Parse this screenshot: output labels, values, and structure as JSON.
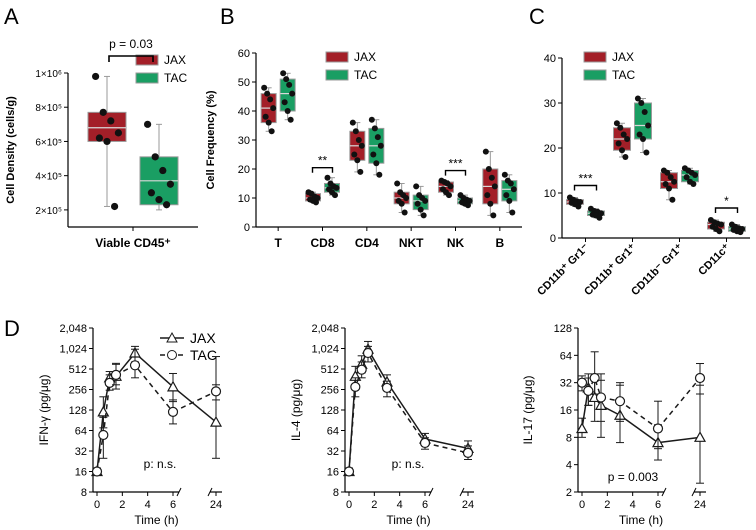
{
  "colors": {
    "jax": "#a31f28",
    "tac": "#1a9e63",
    "line": "#1a1a1a",
    "dot": "#111111"
  },
  "chart_data": [
    {
      "panel": "A",
      "type": "box",
      "ylabel": "Cell Density (cells/g)",
      "categories": [
        "Viable CD45⁺"
      ],
      "ylim": [
        100000,
        1000000
      ],
      "yticks": [
        200000,
        400000,
        600000,
        800000,
        1000000
      ],
      "ytick_labels": [
        "2×10⁵",
        "4×10⁵",
        "6×10⁵",
        "8×10⁵",
        "1×10⁶"
      ],
      "legend": [
        "JAX",
        "TAC"
      ],
      "annotation": "p = 0.03",
      "series": [
        {
          "name": "JAX",
          "box": {
            "min": 220000,
            "q1": 600000,
            "median": 680000,
            "q3": 770000,
            "max": 980000
          },
          "points": [
            980000,
            770000,
            720000,
            650000,
            620000,
            600000,
            220000
          ]
        },
        {
          "name": "TAC",
          "box": {
            "min": 200000,
            "q1": 230000,
            "median": 370000,
            "q3": 510000,
            "max": 700000
          },
          "points": [
            700000,
            510000,
            430000,
            350000,
            300000,
            260000,
            230000
          ]
        }
      ]
    },
    {
      "panel": "B",
      "type": "box",
      "ylabel": "Cell Frequency (%)",
      "categories": [
        "T",
        "CD8",
        "CD4",
        "NKT",
        "NK",
        "B"
      ],
      "ylim": [
        0,
        60
      ],
      "yticks": [
        0,
        10,
        20,
        30,
        40,
        50,
        60
      ],
      "legend": [
        "JAX",
        "TAC"
      ],
      "annotations": [
        {
          "category": "CD8",
          "text": "**"
        },
        {
          "category": "NK",
          "text": "***"
        }
      ],
      "series": [
        {
          "name": "JAX",
          "boxes": [
            {
              "min": 33,
              "q1": 36,
              "median": 41,
              "q3": 46,
              "max": 48,
              "points": [
                48,
                46,
                44,
                41,
                38,
                36,
                33
              ]
            },
            {
              "min": 8.5,
              "q1": 9,
              "median": 10,
              "q3": 11.5,
              "max": 12,
              "points": [
                12,
                11.5,
                10.5,
                10,
                9.5,
                9,
                8.5
              ]
            },
            {
              "min": 19,
              "q1": 23,
              "median": 28,
              "q3": 33,
              "max": 36,
              "points": [
                36,
                33,
                30,
                28,
                25,
                23,
                19
              ]
            },
            {
              "min": 5,
              "q1": 8,
              "median": 10,
              "q3": 12,
              "max": 15,
              "points": [
                15,
                12,
                11,
                10,
                9,
                8,
                5
              ]
            },
            {
              "min": 11,
              "q1": 12,
              "median": 14,
              "q3": 15.5,
              "max": 16,
              "points": [
                16,
                15.5,
                15,
                14,
                13,
                12,
                11
              ]
            },
            {
              "min": 4,
              "q1": 8,
              "median": 14,
              "q3": 20,
              "max": 26,
              "points": [
                26,
                20,
                17,
                14,
                11,
                8,
                4
              ]
            }
          ]
        },
        {
          "name": "TAC",
          "boxes": [
            {
              "min": 37,
              "q1": 40,
              "median": 46,
              "q3": 51,
              "max": 53,
              "points": [
                53,
                51,
                49,
                46,
                43,
                40,
                37
              ]
            },
            {
              "min": 11,
              "q1": 12,
              "median": 13.5,
              "q3": 15,
              "max": 17,
              "points": [
                17,
                15,
                14,
                13.5,
                13,
                12,
                11
              ]
            },
            {
              "min": 18,
              "q1": 22,
              "median": 28,
              "q3": 34,
              "max": 37,
              "points": [
                37,
                34,
                31,
                28,
                25,
                22,
                18
              ]
            },
            {
              "min": 4,
              "q1": 6,
              "median": 9,
              "q3": 11,
              "max": 14,
              "points": [
                14,
                11,
                10,
                9,
                8,
                6,
                4
              ]
            },
            {
              "min": 7.5,
              "q1": 8,
              "median": 9,
              "q3": 10,
              "max": 11,
              "points": [
                11,
                10,
                9.5,
                9,
                8.5,
                8,
                7.5
              ]
            },
            {
              "min": 5,
              "q1": 9,
              "median": 13,
              "q3": 16,
              "max": 18,
              "points": [
                18,
                16,
                15,
                13,
                11,
                9,
                5
              ]
            }
          ]
        }
      ]
    },
    {
      "panel": "C",
      "type": "box",
      "categories": [
        "CD11b⁺ Gr1⁻",
        "CD11b⁺ Gr1⁺",
        "CD11b⁻ Gr1⁺",
        "CD11c⁺"
      ],
      "ylim": [
        0,
        40
      ],
      "yticks": [
        0,
        10,
        20,
        30,
        40
      ],
      "legend": [
        "JAX",
        "TAC"
      ],
      "annotations": [
        {
          "category": "CD11b⁺ Gr1⁻",
          "text": "***"
        },
        {
          "category": "CD11c⁺",
          "text": "*"
        }
      ],
      "series": [
        {
          "name": "JAX",
          "boxes": [
            {
              "min": 7,
              "q1": 7.5,
              "median": 8,
              "q3": 8.5,
              "max": 9,
              "points": [
                9,
                8.5,
                8.2,
                8,
                7.8,
                7.5,
                7
              ]
            },
            {
              "min": 18,
              "q1": 19.5,
              "median": 22,
              "q3": 24.5,
              "max": 25.5,
              "points": [
                25.5,
                24.5,
                23,
                22,
                21,
                19.5,
                18
              ]
            },
            {
              "min": 8.5,
              "q1": 11,
              "median": 12.5,
              "q3": 14.5,
              "max": 15,
              "points": [
                15,
                14.5,
                13.5,
                12.5,
                12,
                11,
                8.5
              ]
            },
            {
              "min": 1.5,
              "q1": 2,
              "median": 3,
              "q3": 3.5,
              "max": 4,
              "points": [
                4,
                3.5,
                3.2,
                3,
                2.5,
                2,
                1.5
              ]
            }
          ]
        },
        {
          "name": "TAC",
          "boxes": [
            {
              "min": 4.5,
              "q1": 5,
              "median": 5.5,
              "q3": 6,
              "max": 6.5,
              "points": [
                6.5,
                6,
                5.8,
                5.5,
                5.2,
                5,
                4.5
              ]
            },
            {
              "min": 19,
              "q1": 22,
              "median": 25,
              "q3": 30,
              "max": 31,
              "points": [
                31,
                30,
                28,
                25,
                23,
                22,
                19
              ]
            },
            {
              "min": 12,
              "q1": 12.5,
              "median": 14,
              "q3": 15,
              "max": 15.5,
              "points": [
                15.5,
                15,
                14.5,
                14,
                13.5,
                12.5,
                12
              ]
            },
            {
              "min": 1.3,
              "q1": 1.5,
              "median": 2,
              "q3": 2.5,
              "max": 3,
              "points": [
                3,
                2.5,
                2.2,
                2,
                1.8,
                1.5,
                1.3
              ]
            }
          ]
        }
      ]
    },
    {
      "panel": "D",
      "type": "line",
      "xlabel": "Time (h)",
      "x": [
        0,
        0.5,
        1,
        1.5,
        3,
        6,
        24
      ],
      "xticks": [
        0,
        2,
        4,
        6,
        24
      ],
      "legend": [
        "JAX",
        "TAC"
      ],
      "log_scale_y": true,
      "subplots": [
        {
          "ylabel": "IFN-γ (pg/μg)",
          "yticks": [
            8,
            16,
            32,
            64,
            128,
            256,
            512,
            1024,
            2048
          ],
          "ytick_labels": [
            "8",
            "16",
            "32",
            "64",
            "128",
            "256",
            "512",
            "1,024",
            "2,048"
          ],
          "ylim": [
            8,
            2048
          ],
          "annotation": "p: n.s.",
          "series": [
            {
              "name": "JAX",
              "marker": "triangle",
              "dash": false,
              "values": [
                16,
                120,
                380,
                400,
                880,
                280,
                85
              ],
              "err_lo": [
                14,
                70,
                300,
                260,
                650,
                170,
                25
              ],
              "err_hi": [
                18,
                200,
                470,
                620,
                1100,
                440,
                300
              ]
            },
            {
              "name": "TAC",
              "marker": "circle",
              "dash": true,
              "values": [
                16,
                55,
                320,
                420,
                580,
                120,
                240
              ],
              "err_lo": [
                14,
                25,
                250,
                300,
                380,
                80,
                180
              ],
              "err_hi": [
                18,
                100,
                420,
                600,
                1000,
                180,
                780
              ]
            }
          ]
        },
        {
          "ylabel": "IL-4 (pg/μg)",
          "yticks": [
            8,
            16,
            32,
            64,
            128,
            256,
            512,
            1024,
            2048
          ],
          "ytick_labels": [
            "8",
            "16",
            "32",
            "64",
            "128",
            "256",
            "512",
            "1,024",
            "2,048"
          ],
          "ylim": [
            8,
            2048
          ],
          "annotation": "p: n.s.",
          "series": [
            {
              "name": "JAX",
              "marker": "triangle",
              "dash": false,
              "values": [
                16,
                400,
                600,
                1000,
                330,
                48,
                35
              ],
              "err_lo": [
                14,
                280,
                450,
                800,
                250,
                40,
                28
              ],
              "err_hi": [
                18,
                560,
                800,
                1300,
                420,
                58,
                45
              ]
            },
            {
              "name": "TAC",
              "marker": "circle",
              "dash": true,
              "values": [
                16,
                280,
                500,
                880,
                270,
                42,
                30
              ],
              "err_lo": [
                14,
                200,
                380,
                650,
                200,
                34,
                24
              ],
              "err_hi": [
                18,
                380,
                650,
                1100,
                340,
                50,
                38
              ]
            }
          ]
        },
        {
          "yticks": [
            2,
            4,
            8,
            16,
            32,
            64,
            128
          ],
          "ytick_labels": [
            "2",
            "4",
            "8",
            "16",
            "32",
            "64",
            "128"
          ],
          "ylim": [
            2,
            128
          ],
          "ylabel": "IL-17 (pg/μg)",
          "annotation": "p = 0.003",
          "series": [
            {
              "name": "JAX",
              "marker": "triangle",
              "dash": false,
              "values": [
                10,
                28,
                22,
                18,
                14,
                7,
                8
              ],
              "err_lo": [
                8,
                18,
                12,
                8,
                7,
                4.5,
                2.5
              ],
              "err_hi": [
                13,
                40,
                35,
                40,
                32,
                11,
                30
              ]
            },
            {
              "name": "TAC",
              "marker": "circle",
              "dash": true,
              "values": [
                32,
                26,
                36,
                22,
                20,
                10,
                36
              ],
              "err_lo": [
                26,
                18,
                24,
                12,
                12,
                6,
                24
              ],
              "err_hi": [
                38,
                36,
                70,
                34,
                30,
                20,
                52
              ]
            }
          ]
        }
      ]
    }
  ]
}
